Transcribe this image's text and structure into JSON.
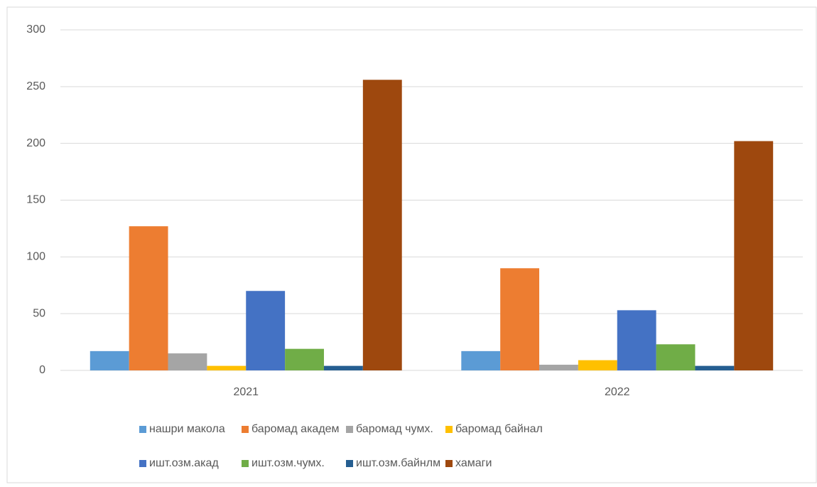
{
  "chart_data": {
    "type": "bar",
    "categories": [
      "2021",
      "2022"
    ],
    "series": [
      {
        "name": "нашри макола",
        "color": "#5b9bd5",
        "values": [
          17,
          17
        ]
      },
      {
        "name": "баромад академ",
        "color": "#ed7d31",
        "values": [
          127,
          90
        ]
      },
      {
        "name": "баромад чумх.",
        "color": "#a5a5a5",
        "values": [
          15,
          5
        ]
      },
      {
        "name": "баромад байнал",
        "color": "#ffc000",
        "values": [
          4,
          9
        ]
      },
      {
        "name": "ишт.озм.акад",
        "color": "#4472c4",
        "values": [
          70,
          53
        ]
      },
      {
        "name": "ишт.озм.чумх.",
        "color": "#70ad47",
        "values": [
          19,
          23
        ]
      },
      {
        "name": "ишт.озм.байнлм",
        "color": "#255e91",
        "values": [
          4,
          4
        ]
      },
      {
        "name": "хамаги",
        "color": "#9e480e",
        "values": [
          256,
          202
        ]
      }
    ],
    "ylim": [
      0,
      300
    ],
    "yticks": [
      0,
      50,
      100,
      150,
      200,
      250,
      300
    ],
    "grid": true,
    "legend": "bottom"
  }
}
